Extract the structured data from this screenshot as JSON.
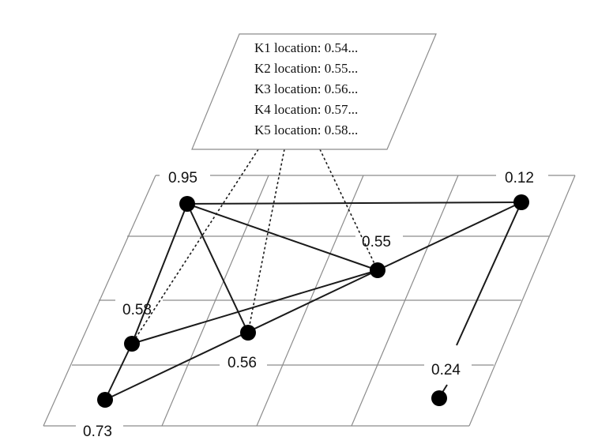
{
  "panel": {
    "lines": [
      "K1 location: 0.54...",
      "K2 location: 0.55...",
      "K3 location: 0.56...",
      "K4 location: 0.57...",
      "K5 location: 0.58..."
    ]
  },
  "nodes": [
    {
      "id": "n1",
      "label": "0.95"
    },
    {
      "id": "n2",
      "label": "0.12"
    },
    {
      "id": "n3",
      "label": "0.55"
    },
    {
      "id": "n4",
      "label": "0.58"
    },
    {
      "id": "n5",
      "label": "0.56"
    },
    {
      "id": "n6",
      "label": "0.73"
    },
    {
      "id": "n7",
      "label": "0.24"
    }
  ],
  "edges": [
    [
      "n1",
      "n2"
    ],
    [
      "n1",
      "n3"
    ],
    [
      "n1",
      "n4"
    ],
    [
      "n1",
      "n5"
    ],
    [
      "n2",
      "n3"
    ],
    [
      "n2",
      "n7"
    ],
    [
      "n3",
      "n4"
    ],
    [
      "n3",
      "n6"
    ],
    [
      "n4",
      "n6"
    ]
  ],
  "dashed_links": [
    "n4",
    "n5",
    "n3"
  ]
}
